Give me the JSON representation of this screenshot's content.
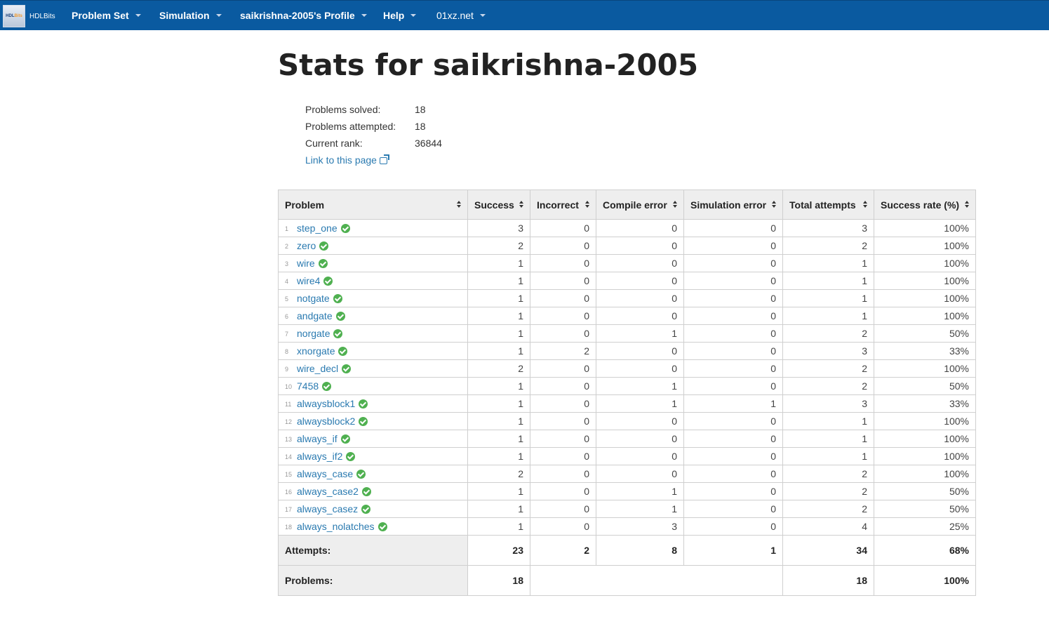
{
  "nav": {
    "logo_mark": "HDLBits",
    "logo_text": "HDLBits",
    "items": [
      "Problem Set",
      "Simulation",
      "saikrishna-2005's Profile",
      "Help",
      "01xz.net"
    ]
  },
  "page": {
    "title": "Stats for saikrishna-2005"
  },
  "summary": {
    "solved_label": "Problems solved:",
    "solved_value": "18",
    "attempted_label": "Problems attempted:",
    "attempted_value": "18",
    "rank_label": "Current rank:",
    "rank_value": "36844",
    "link_text": "Link to this page"
  },
  "table": {
    "headers": [
      "Problem",
      "Success",
      "Incorrect",
      "Compile error",
      "Simulation error",
      "Total attempts",
      "Success rate (%)"
    ],
    "rows": [
      {
        "n": "1",
        "name": "step_one",
        "success": "3",
        "incorrect": "0",
        "compile": "0",
        "sim": "0",
        "total": "3",
        "rate": "100%"
      },
      {
        "n": "2",
        "name": "zero",
        "success": "2",
        "incorrect": "0",
        "compile": "0",
        "sim": "0",
        "total": "2",
        "rate": "100%"
      },
      {
        "n": "3",
        "name": "wire",
        "success": "1",
        "incorrect": "0",
        "compile": "0",
        "sim": "0",
        "total": "1",
        "rate": "100%"
      },
      {
        "n": "4",
        "name": "wire4",
        "success": "1",
        "incorrect": "0",
        "compile": "0",
        "sim": "0",
        "total": "1",
        "rate": "100%"
      },
      {
        "n": "5",
        "name": "notgate",
        "success": "1",
        "incorrect": "0",
        "compile": "0",
        "sim": "0",
        "total": "1",
        "rate": "100%"
      },
      {
        "n": "6",
        "name": "andgate",
        "success": "1",
        "incorrect": "0",
        "compile": "0",
        "sim": "0",
        "total": "1",
        "rate": "100%"
      },
      {
        "n": "7",
        "name": "norgate",
        "success": "1",
        "incorrect": "0",
        "compile": "1",
        "sim": "0",
        "total": "2",
        "rate": "50%"
      },
      {
        "n": "8",
        "name": "xnorgate",
        "success": "1",
        "incorrect": "2",
        "compile": "0",
        "sim": "0",
        "total": "3",
        "rate": "33%"
      },
      {
        "n": "9",
        "name": "wire_decl",
        "success": "2",
        "incorrect": "0",
        "compile": "0",
        "sim": "0",
        "total": "2",
        "rate": "100%"
      },
      {
        "n": "10",
        "name": "7458",
        "success": "1",
        "incorrect": "0",
        "compile": "1",
        "sim": "0",
        "total": "2",
        "rate": "50%"
      },
      {
        "n": "11",
        "name": "alwaysblock1",
        "success": "1",
        "incorrect": "0",
        "compile": "1",
        "sim": "1",
        "total": "3",
        "rate": "33%"
      },
      {
        "n": "12",
        "name": "alwaysblock2",
        "success": "1",
        "incorrect": "0",
        "compile": "0",
        "sim": "0",
        "total": "1",
        "rate": "100%"
      },
      {
        "n": "13",
        "name": "always_if",
        "success": "1",
        "incorrect": "0",
        "compile": "0",
        "sim": "0",
        "total": "1",
        "rate": "100%"
      },
      {
        "n": "14",
        "name": "always_if2",
        "success": "1",
        "incorrect": "0",
        "compile": "0",
        "sim": "0",
        "total": "1",
        "rate": "100%"
      },
      {
        "n": "15",
        "name": "always_case",
        "success": "2",
        "incorrect": "0",
        "compile": "0",
        "sim": "0",
        "total": "2",
        "rate": "100%"
      },
      {
        "n": "16",
        "name": "always_case2",
        "success": "1",
        "incorrect": "0",
        "compile": "1",
        "sim": "0",
        "total": "2",
        "rate": "50%"
      },
      {
        "n": "17",
        "name": "always_casez",
        "success": "1",
        "incorrect": "0",
        "compile": "1",
        "sim": "0",
        "total": "2",
        "rate": "50%"
      },
      {
        "n": "18",
        "name": "always_nolatches",
        "success": "1",
        "incorrect": "0",
        "compile": "3",
        "sim": "0",
        "total": "4",
        "rate": "25%"
      }
    ],
    "attempts": {
      "label": "Attempts:",
      "success": "23",
      "incorrect": "2",
      "compile": "8",
      "sim": "1",
      "total": "34",
      "rate": "68%"
    },
    "problems": {
      "label": "Problems:",
      "success": "18",
      "total": "18",
      "rate": "100%"
    }
  },
  "colors": {
    "navbar": "#0a5aa0",
    "link": "#2a7ab0",
    "check": "#4fb050",
    "header_bg": "#eeeeee"
  }
}
